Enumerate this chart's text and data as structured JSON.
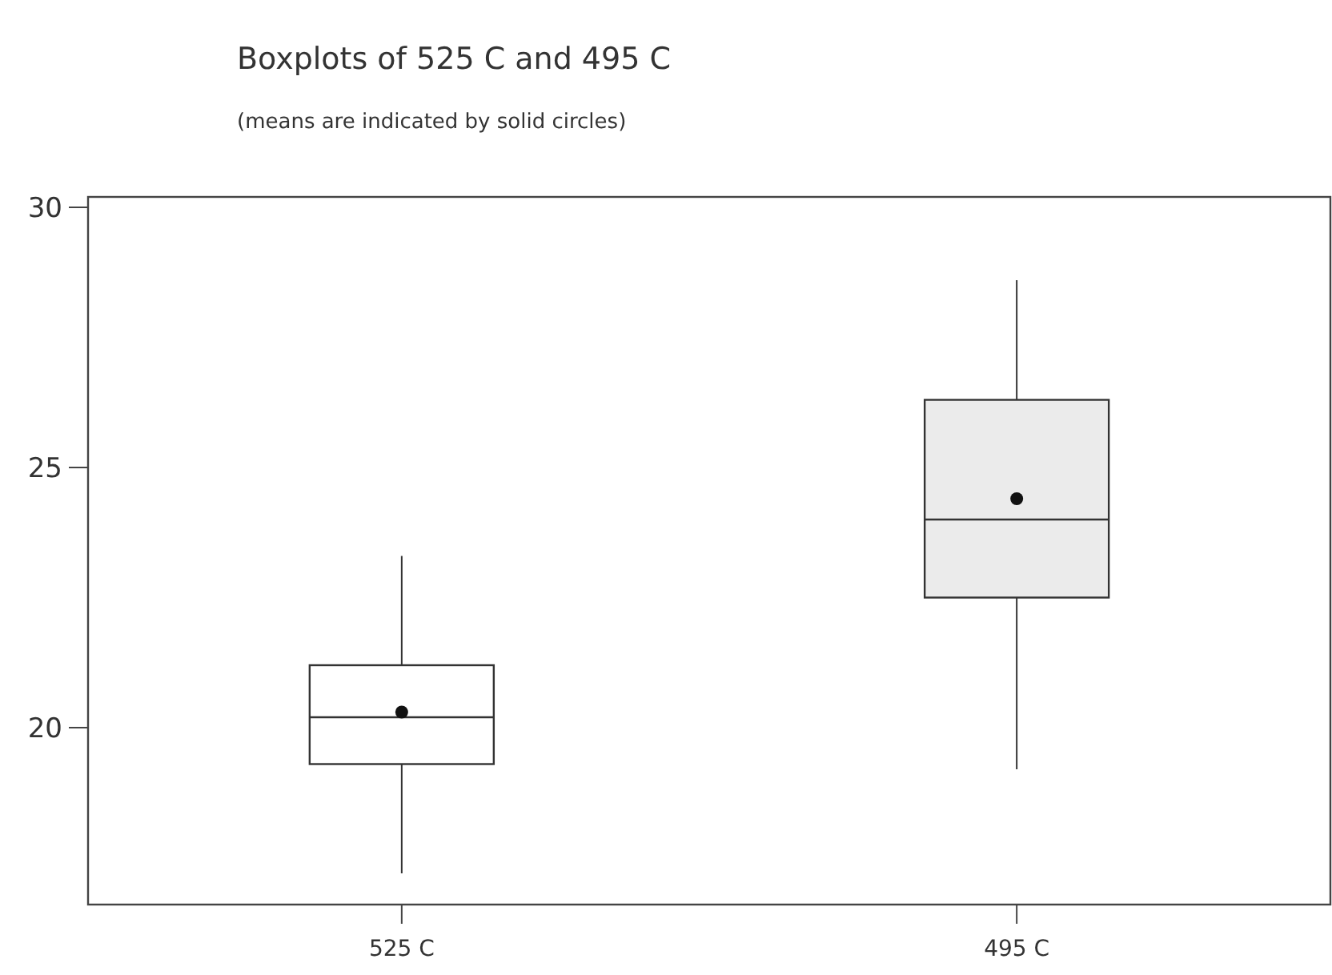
{
  "chart_data": {
    "type": "box",
    "title": "Boxplots of 525 C and 495 C",
    "subtitle": "(means are indicated by solid circles)",
    "categories": [
      "525 C",
      "495 C"
    ],
    "colors": [
      "#ffffff",
      "#ebebeb"
    ],
    "boxes": [
      {
        "low": 17.2,
        "q1": 19.3,
        "median": 20.2,
        "q3": 21.2,
        "high": 23.3,
        "mean": 20.3
      },
      {
        "low": 19.2,
        "q1": 22.5,
        "median": 24.0,
        "q3": 26.3,
        "high": 28.6,
        "mean": 24.4
      }
    ],
    "ylim": [
      16.6,
      30.2
    ],
    "yticks": [
      20,
      25,
      30
    ]
  }
}
